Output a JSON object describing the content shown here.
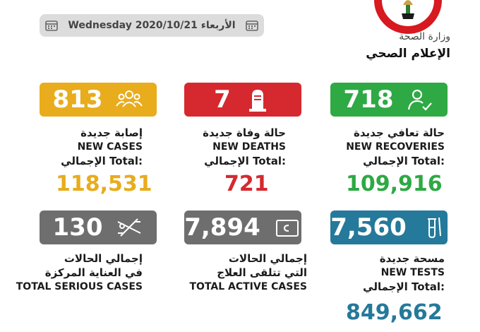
{
  "header": {
    "date": "Wednesday 2020/10/21 الأربعاء",
    "ministry": "وزارة الصحة",
    "department": "الإعلام الصحي"
  },
  "cards": {
    "new_cases": {
      "value": "813",
      "label_ar": "إصابة جديدة",
      "label_en": "NEW CASES",
      "total_label": "الإجمالي Total:",
      "total": "118,531",
      "color": "#e8ac1c",
      "icon": "people-icon"
    },
    "new_deaths": {
      "value": "7",
      "label_ar": "حالة وفاة جديدة",
      "label_en": "NEW DEATHS",
      "total_label": "الإجمالي Total:",
      "total": "721",
      "color": "#d5292f",
      "icon": "tombstone-icon"
    },
    "new_recoveries": {
      "value": "718",
      "label_ar": "حالة تعافي جديدة",
      "label_en": "NEW RECOVERIES",
      "total_label": "الإجمالي Total:",
      "total": "109,916",
      "color": "#2ea944",
      "icon": "person-check-icon"
    },
    "serious_cases": {
      "value": "130",
      "label_ar_1": "إجمالي الحالات",
      "label_ar_2": "في العناية المركزة",
      "label_en": "TOTAL SERIOUS CASES",
      "color": "#6e6e6e",
      "icon": "hospital-bed-icon"
    },
    "active_cases": {
      "value": "7,894",
      "label_ar_1": "إجمالي الحالات",
      "label_ar_2": "التي تتلقى العلاج",
      "label_en": "TOTAL ACTIVE CASES",
      "color": "#6e6e6e",
      "icon": "medicine-box-icon"
    },
    "new_tests": {
      "value": "7,560",
      "label_ar": "مسحة جديدة",
      "label_en": "NEW TESTS",
      "total_label": "الإجمالي Total:",
      "total": "849,662",
      "color": "#25799a",
      "icon": "test-tube-icon"
    }
  }
}
